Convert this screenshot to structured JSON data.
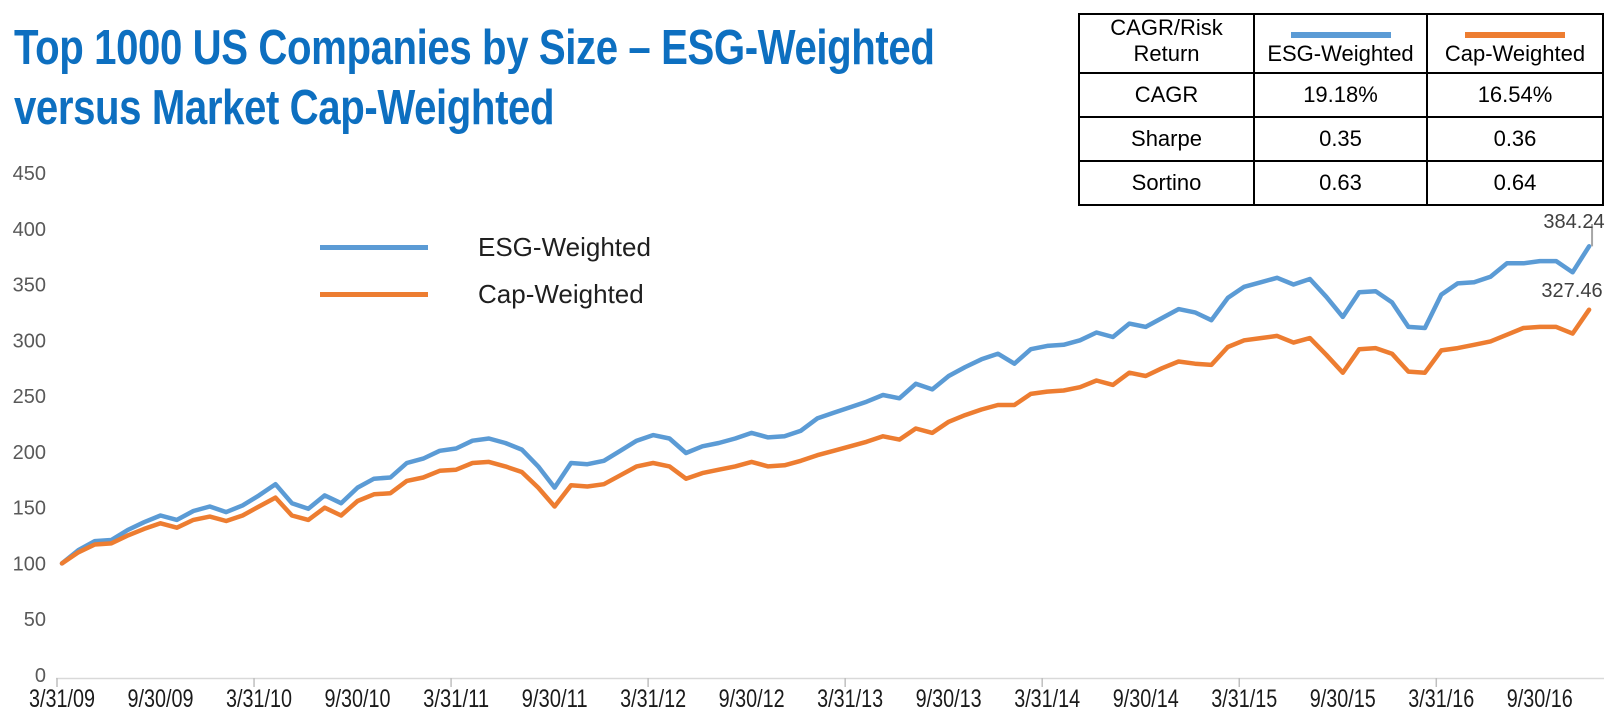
{
  "title": {
    "line1": "Top 1000 US Companies by Size – ESG-Weighted",
    "line2": "versus Market Cap-Weighted",
    "color": "#0d6fc0"
  },
  "legend": {
    "items": [
      {
        "label": "ESG-Weighted",
        "color": "#5B9BD5"
      },
      {
        "label": "Cap-Weighted",
        "color": "#ED7D31"
      }
    ]
  },
  "stats_table": {
    "header": [
      "CAGR/Risk Return",
      "ESG-Weighted",
      "Cap-Weighted"
    ],
    "rows": [
      [
        "CAGR",
        "19.18%",
        "16.54%"
      ],
      [
        "Sharpe",
        "0.35",
        "0.36"
      ],
      [
        "Sortino",
        "0.63",
        "0.64"
      ]
    ]
  },
  "chart_data": {
    "type": "line",
    "title": "Top 1000 US Companies by Size – ESG-Weighted versus Market Cap-Weighted",
    "x_frequency": "monthly",
    "x_start": "3/31/09",
    "x_end": "12/31/16",
    "n_points": 94,
    "x_tick_labels": [
      "3/31/09",
      "9/30/09",
      "3/31/10",
      "9/30/10",
      "3/31/11",
      "9/30/11",
      "3/31/12",
      "9/30/12",
      "3/31/13",
      "9/30/13",
      "3/31/14",
      "9/30/14",
      "3/31/15",
      "9/30/15",
      "3/31/16",
      "9/30/16"
    ],
    "y_ticks": [
      0,
      50,
      100,
      150,
      200,
      250,
      300,
      350,
      400,
      450
    ],
    "ylim": [
      0,
      450
    ],
    "grid": false,
    "legend_position": "inside-top-left",
    "axis_color": "#d9d9d9",
    "tick_color": "#bfbfbf",
    "x_label_color": "#1a1a1a",
    "y_label_color": "#595959",
    "series": [
      {
        "name": "ESG-Weighted",
        "color": "#5B9BD5",
        "end_label": "384.24",
        "values": [
          100,
          112,
          120,
          121,
          130,
          137,
          143,
          139,
          147,
          151,
          146,
          152,
          161,
          171,
          154,
          149,
          161,
          154,
          168,
          176,
          177,
          190,
          194,
          201,
          203,
          210,
          212,
          208,
          202,
          187,
          168,
          190,
          189,
          192,
          201,
          210,
          215,
          212,
          199,
          205,
          208,
          212,
          217,
          213,
          214,
          219,
          230,
          235,
          240,
          245,
          251,
          248,
          261,
          256,
          268,
          276,
          283,
          288,
          279,
          292,
          295,
          296,
          300,
          307,
          303,
          315,
          312,
          320,
          328,
          325,
          318,
          338,
          348,
          352,
          356,
          350,
          355,
          339,
          321,
          343,
          344,
          334,
          312,
          311,
          341,
          351,
          352,
          357,
          369,
          369,
          371,
          371,
          361,
          384.24
        ]
      },
      {
        "name": "Cap-Weighted",
        "color": "#ED7D31",
        "end_label": "327.46",
        "values": [
          100,
          110,
          117,
          118,
          125,
          131,
          136,
          132,
          139,
          142,
          138,
          143,
          151,
          159,
          143,
          139,
          150,
          143,
          156,
          162,
          163,
          174,
          177,
          183,
          184,
          190,
          191,
          187,
          182,
          168,
          151,
          170,
          169,
          171,
          179,
          187,
          190,
          187,
          176,
          181,
          184,
          187,
          191,
          187,
          188,
          192,
          197,
          201,
          205,
          209,
          214,
          211,
          221,
          217,
          227,
          233,
          238,
          242,
          242,
          252,
          254,
          255,
          258,
          264,
          260,
          271,
          268,
          275,
          281,
          279,
          278,
          294,
          300,
          302,
          304,
          298,
          302,
          287,
          271,
          292,
          293,
          288,
          272,
          271,
          291,
          293,
          296,
          299,
          305,
          311,
          312,
          312,
          306,
          327.46
        ]
      }
    ]
  }
}
